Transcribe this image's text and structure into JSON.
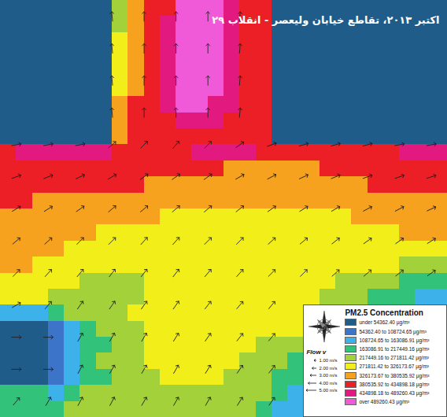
{
  "chart_data": {
    "type": "heatmap",
    "title": "۲۹ اکتبر ۲۰۱۳، تقاطع خیابان ولیعصر - انقلاب",
    "tick_labels": false,
    "legend": "bottom-right",
    "legend_title": "PM2.5 Concentration",
    "colors": [
      "#1f5c8a",
      "#3b74c8",
      "#3cb1ea",
      "#33c27a",
      "#a3d13a",
      "#f2ee1a",
      "#f7a21e",
      "#ec1f26",
      "#e2197f",
      "#f05ad8"
    ],
    "color_ticks": [
      54362.4,
      108724.65,
      163086.91,
      217449.16,
      271811.42,
      326173.67,
      380535.92,
      434898.18,
      489260.43
    ],
    "color_labels": [
      "under 54362.40 µg/m³",
      "54362.40 to 108724.65 µg/m³",
      "108724.65 to 163086.91 µg/m³",
      "163086.91 to 217449.16 µg/m³",
      "217449.16 to 271811.42 µg/m³",
      "271811.42 to 326173.67 µg/m³",
      "326173.67 to 380535.92 µg/m³",
      "380535.92 to 434898.18 µg/m³",
      "434898.18 to 489260.43 µg/m³",
      "over 489260.43 µg/m³"
    ],
    "flow_legend_title": "Flow v",
    "flow_legend": [
      "1.00 m/s",
      "2.00 m/s",
      "3.00 m/s",
      "4.00 m/s",
      "5.00 m/s"
    ],
    "cells": [
      [
        0,
        0,
        0,
        0,
        0,
        0,
        0,
        245000,
        353000,
        408000,
        408000,
        516000,
        516000,
        516000,
        462000,
        408000,
        408000,
        0,
        0,
        0,
        0,
        0,
        0,
        0,
        0,
        0,
        0,
        0
      ],
      [
        0,
        0,
        0,
        0,
        0,
        0,
        0,
        245000,
        353000,
        408000,
        462000,
        516000,
        516000,
        516000,
        462000,
        408000,
        408000,
        0,
        0,
        0,
        0,
        0,
        0,
        0,
        0,
        0,
        0,
        0
      ],
      [
        0,
        0,
        0,
        0,
        0,
        0,
        0,
        299000,
        353000,
        408000,
        462000,
        516000,
        516000,
        516000,
        462000,
        408000,
        408000,
        0,
        0,
        0,
        0,
        0,
        0,
        0,
        0,
        0,
        0,
        0
      ],
      [
        0,
        0,
        0,
        0,
        0,
        0,
        0,
        299000,
        353000,
        408000,
        462000,
        516000,
        516000,
        516000,
        462000,
        408000,
        408000,
        0,
        0,
        0,
        0,
        0,
        0,
        0,
        0,
        0,
        0,
        0
      ],
      [
        0,
        0,
        0,
        0,
        0,
        0,
        0,
        299000,
        353000,
        408000,
        462000,
        516000,
        516000,
        516000,
        462000,
        408000,
        408000,
        0,
        0,
        0,
        0,
        0,
        0,
        0,
        0,
        0,
        0,
        0
      ],
      [
        0,
        0,
        0,
        0,
        0,
        0,
        0,
        299000,
        353000,
        408000,
        462000,
        516000,
        516000,
        516000,
        462000,
        408000,
        408000,
        0,
        0,
        0,
        0,
        0,
        0,
        0,
        0,
        0,
        0,
        0
      ],
      [
        0,
        0,
        0,
        0,
        0,
        0,
        0,
        353000,
        408000,
        408000,
        462000,
        516000,
        516000,
        462000,
        462000,
        408000,
        408000,
        0,
        0,
        0,
        0,
        0,
        0,
        0,
        0,
        0,
        0,
        0
      ],
      [
        0,
        0,
        0,
        0,
        0,
        0,
        0,
        353000,
        408000,
        408000,
        408000,
        462000,
        462000,
        462000,
        408000,
        408000,
        408000,
        0,
        0,
        0,
        0,
        0,
        0,
        0,
        0,
        0,
        0,
        0
      ],
      [
        0,
        0,
        0,
        0,
        0,
        0,
        0,
        353000,
        408000,
        408000,
        408000,
        408000,
        408000,
        408000,
        408000,
        408000,
        408000,
        0,
        0,
        0,
        0,
        0,
        0,
        0,
        0,
        0,
        0,
        0
      ],
      [
        408000,
        462000,
        462000,
        462000,
        462000,
        462000,
        462000,
        408000,
        408000,
        408000,
        408000,
        408000,
        462000,
        462000,
        462000,
        462000,
        408000,
        408000,
        408000,
        408000,
        408000,
        408000,
        408000,
        408000,
        408000,
        462000,
        462000,
        462000
      ],
      [
        408000,
        408000,
        408000,
        408000,
        408000,
        408000,
        408000,
        408000,
        408000,
        408000,
        408000,
        408000,
        408000,
        408000,
        353000,
        353000,
        353000,
        353000,
        353000,
        353000,
        408000,
        408000,
        408000,
        408000,
        408000,
        408000,
        408000,
        408000
      ],
      [
        408000,
        408000,
        408000,
        408000,
        408000,
        408000,
        408000,
        408000,
        408000,
        353000,
        353000,
        353000,
        353000,
        353000,
        353000,
        353000,
        353000,
        353000,
        353000,
        353000,
        353000,
        353000,
        353000,
        408000,
        408000,
        408000,
        408000,
        408000
      ],
      [
        408000,
        408000,
        353000,
        353000,
        353000,
        353000,
        353000,
        353000,
        353000,
        353000,
        353000,
        353000,
        353000,
        353000,
        353000,
        353000,
        353000,
        353000,
        353000,
        353000,
        353000,
        353000,
        353000,
        353000,
        353000,
        353000,
        353000,
        353000
      ],
      [
        353000,
        353000,
        353000,
        353000,
        353000,
        353000,
        353000,
        353000,
        353000,
        353000,
        299000,
        299000,
        299000,
        299000,
        299000,
        299000,
        299000,
        299000,
        299000,
        299000,
        299000,
        299000,
        353000,
        353000,
        353000,
        353000,
        353000,
        353000
      ],
      [
        353000,
        353000,
        353000,
        353000,
        353000,
        353000,
        299000,
        299000,
        299000,
        299000,
        299000,
        299000,
        299000,
        299000,
        299000,
        299000,
        299000,
        299000,
        299000,
        299000,
        299000,
        299000,
        299000,
        299000,
        299000,
        353000,
        353000,
        353000
      ],
      [
        353000,
        353000,
        353000,
        353000,
        299000,
        299000,
        299000,
        299000,
        299000,
        299000,
        299000,
        299000,
        299000,
        299000,
        299000,
        299000,
        299000,
        299000,
        299000,
        299000,
        299000,
        299000,
        299000,
        299000,
        299000,
        299000,
        299000,
        299000
      ],
      [
        353000,
        353000,
        299000,
        299000,
        299000,
        299000,
        299000,
        299000,
        299000,
        299000,
        299000,
        299000,
        299000,
        299000,
        299000,
        299000,
        299000,
        299000,
        299000,
        299000,
        299000,
        299000,
        299000,
        299000,
        299000,
        245000,
        245000,
        245000
      ],
      [
        299000,
        299000,
        299000,
        299000,
        299000,
        245000,
        245000,
        245000,
        245000,
        299000,
        299000,
        299000,
        299000,
        299000,
        299000,
        299000,
        299000,
        299000,
        299000,
        299000,
        299000,
        245000,
        245000,
        245000,
        245000,
        190000,
        190000,
        190000
      ],
      [
        299000,
        299000,
        299000,
        245000,
        245000,
        245000,
        245000,
        245000,
        245000,
        299000,
        299000,
        299000,
        299000,
        299000,
        299000,
        299000,
        299000,
        299000,
        299000,
        299000,
        245000,
        245000,
        245000,
        190000,
        190000,
        190000,
        136000,
        136000
      ],
      [
        136000,
        136000,
        136000,
        190000,
        245000,
        245000,
        245000,
        245000,
        299000,
        299000,
        299000,
        299000,
        299000,
        299000,
        299000,
        299000,
        299000,
        299000,
        299000,
        null,
        null,
        null,
        null,
        null,
        null,
        null,
        null,
        null
      ],
      [
        0,
        0,
        0,
        81500,
        136000,
        190000,
        245000,
        245000,
        245000,
        299000,
        299000,
        299000,
        299000,
        299000,
        299000,
        299000,
        299000,
        299000,
        299000,
        null,
        null,
        null,
        null,
        null,
        null,
        null,
        null,
        null
      ],
      [
        0,
        0,
        0,
        81500,
        136000,
        190000,
        190000,
        245000,
        245000,
        299000,
        299000,
        299000,
        299000,
        299000,
        299000,
        299000,
        245000,
        245000,
        245000,
        null,
        null,
        null,
        null,
        null,
        null,
        null,
        null,
        null
      ],
      [
        0,
        0,
        0,
        81500,
        136000,
        190000,
        245000,
        245000,
        245000,
        299000,
        299000,
        299000,
        299000,
        299000,
        299000,
        245000,
        245000,
        245000,
        190000,
        null,
        null,
        null,
        null,
        null,
        null,
        null,
        null,
        null
      ],
      [
        0,
        0,
        0,
        81500,
        136000,
        190000,
        190000,
        245000,
        245000,
        245000,
        299000,
        299000,
        299000,
        299000,
        245000,
        245000,
        245000,
        190000,
        190000,
        null,
        null,
        null,
        null,
        null,
        null,
        null,
        null,
        null
      ],
      [
        190000,
        190000,
        190000,
        136000,
        190000,
        245000,
        245000,
        245000,
        245000,
        245000,
        245000,
        245000,
        245000,
        245000,
        245000,
        245000,
        245000,
        190000,
        136000,
        null,
        null,
        null,
        null,
        null,
        null,
        null,
        null,
        null
      ],
      [
        190000,
        190000,
        190000,
        190000,
        245000,
        245000,
        245000,
        245000,
        245000,
        245000,
        245000,
        245000,
        245000,
        245000,
        245000,
        245000,
        190000,
        136000,
        136000,
        null,
        null,
        null,
        null,
        null,
        null,
        null,
        null,
        null
      ]
    ],
    "flow_direction": [
      [
        null,
        null,
        null,
        -5,
        0,
        0,
        0,
        5,
        null,
        null,
        null,
        null,
        null,
        null
      ],
      [
        null,
        null,
        null,
        -5,
        0,
        0,
        0,
        5,
        null,
        null,
        null,
        null,
        null,
        null
      ],
      [
        null,
        null,
        null,
        -5,
        0,
        0,
        0,
        5,
        null,
        null,
        null,
        null,
        null,
        null
      ],
      [
        null,
        null,
        null,
        -5,
        0,
        0,
        0,
        5,
        null,
        null,
        null,
        null,
        null,
        null
      ],
      [
        80,
        80,
        80,
        50,
        45,
        40,
        45,
        55,
        70,
        75,
        75,
        75,
        80,
        80
      ],
      [
        70,
        68,
        65,
        60,
        55,
        55,
        55,
        60,
        62,
        65,
        68,
        70,
        70,
        72
      ],
      [
        60,
        58,
        55,
        50,
        50,
        50,
        50,
        52,
        55,
        58,
        60,
        62,
        62,
        65
      ],
      [
        50,
        48,
        45,
        45,
        42,
        42,
        45,
        45,
        48,
        50,
        52,
        55,
        55,
        58
      ],
      [
        45,
        42,
        40,
        38,
        38,
        38,
        40,
        42,
        45,
        45,
        48,
        50,
        52,
        55
      ],
      [
        60,
        40,
        35,
        35,
        35,
        35,
        38,
        40,
        40,
        null,
        null,
        null,
        null,
        null
      ],
      [
        90,
        90,
        30,
        30,
        30,
        32,
        35,
        38,
        40,
        null,
        null,
        null,
        null,
        null
      ],
      [
        90,
        90,
        28,
        30,
        30,
        30,
        32,
        35,
        38,
        null,
        null,
        null,
        null,
        null
      ],
      [
        40,
        30,
        28,
        28,
        30,
        30,
        30,
        32,
        35,
        null,
        null,
        null,
        null,
        null
      ]
    ]
  }
}
